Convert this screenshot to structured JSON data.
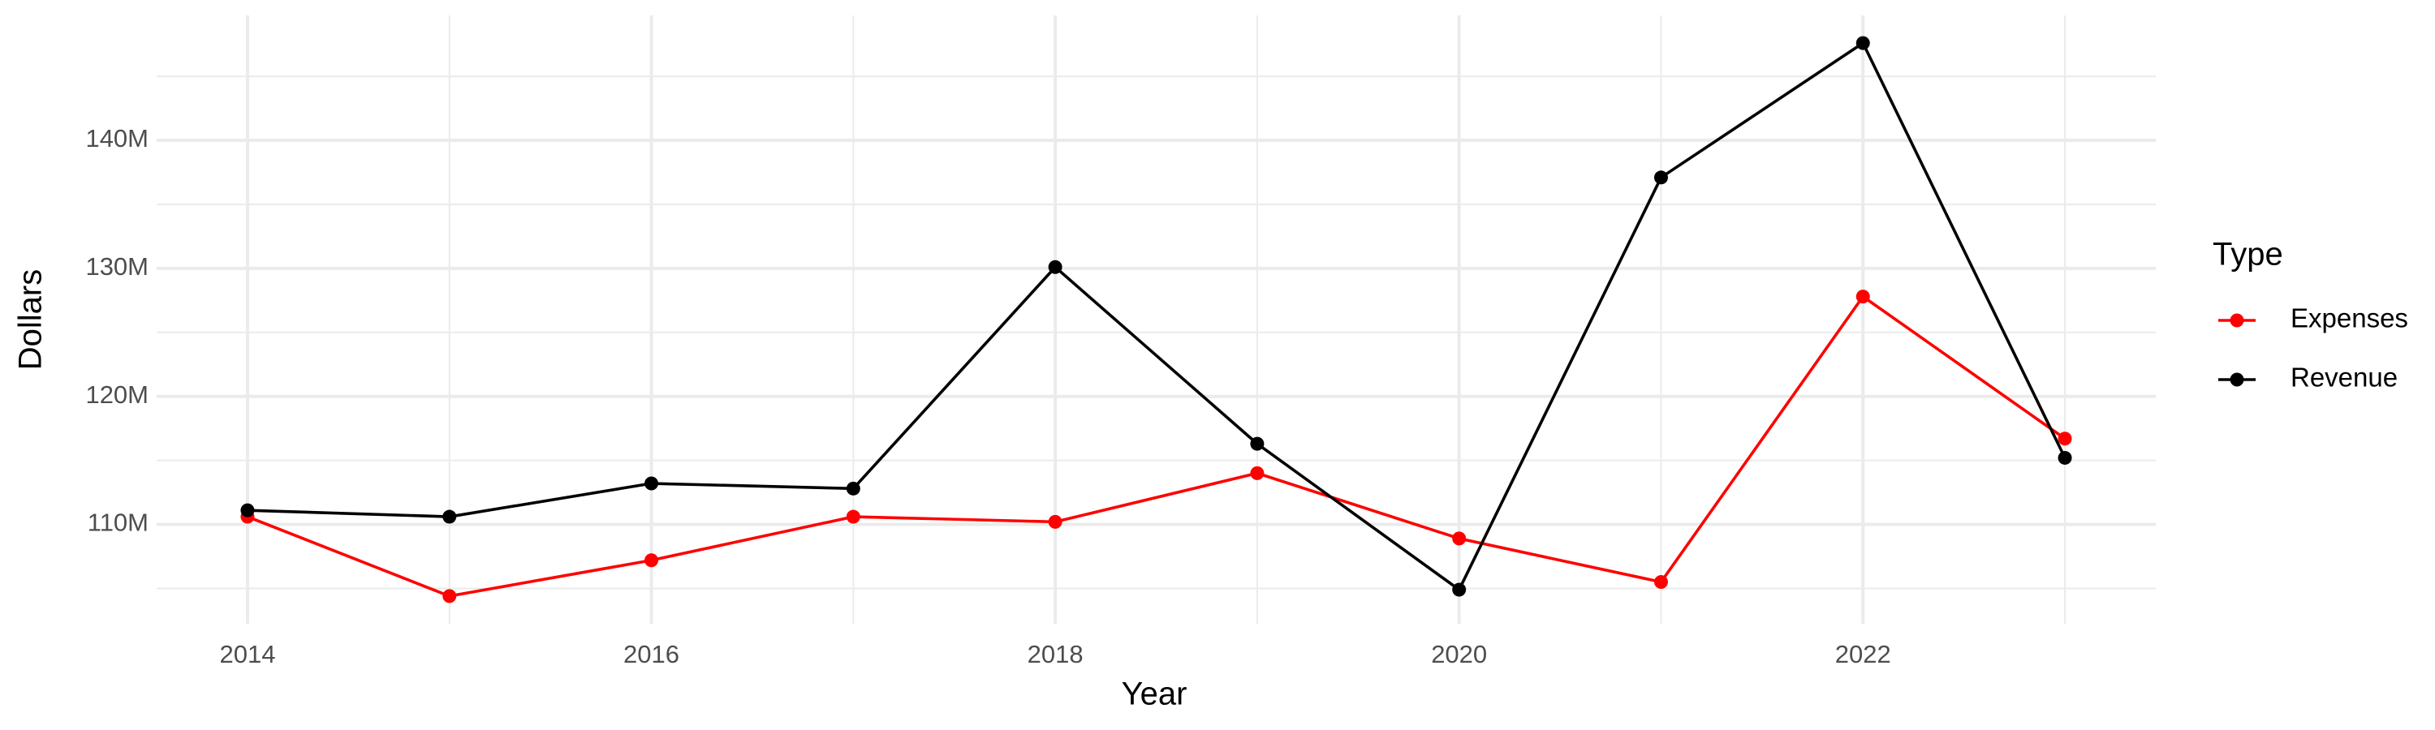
{
  "chart_data": {
    "type": "line",
    "x_label": "Year",
    "y_label": "Dollars",
    "legend_title": "Type",
    "legend_position": "right",
    "x": [
      2014,
      2015,
      2016,
      2017,
      2018,
      2019,
      2020,
      2021,
      2022,
      2023
    ],
    "series": [
      {
        "name": "Expenses",
        "color": "#ff0000",
        "values": [
          110600000,
          104400000,
          107200000,
          110600000,
          110200000,
          114000000,
          108900000,
          105500000,
          127800000,
          116700000
        ]
      },
      {
        "name": "Revenue",
        "color": "#000000",
        "values": [
          111100000,
          110600000,
          113200000,
          112800000,
          130100000,
          116300000,
          104900000,
          137100000,
          147600000,
          115200000
        ]
      }
    ],
    "xlim": [
      2013.55,
      2023.45
    ],
    "xticks": [
      2014,
      2016,
      2018,
      2020,
      2022
    ],
    "xminorticks": [
      2015,
      2017,
      2019,
      2021,
      2023
    ],
    "ylim": [
      102240000,
      149760000
    ],
    "yticks": [
      {
        "value": 110000000,
        "label": "110M"
      },
      {
        "value": 120000000,
        "label": "120M"
      },
      {
        "value": 130000000,
        "label": "130M"
      },
      {
        "value": 140000000,
        "label": "140M"
      }
    ],
    "yminorticks": [
      105000000,
      115000000,
      125000000,
      135000000,
      145000000
    ],
    "grid": true,
    "markers": true
  }
}
